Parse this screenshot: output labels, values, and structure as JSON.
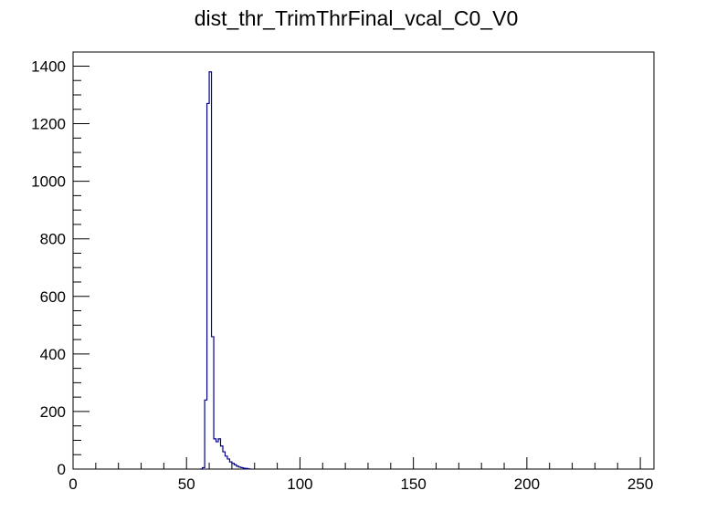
{
  "chart_data": {
    "type": "histogram",
    "title": "dist_thr_TrimThrFinal_vcal_C0_V0",
    "bins": [
      56,
      57,
      58,
      59,
      60,
      61,
      62,
      63,
      64,
      65,
      66,
      67,
      68,
      69,
      70,
      71,
      72,
      73,
      74,
      75,
      76,
      77,
      78
    ],
    "values": [
      0,
      5,
      240,
      1270,
      1380,
      460,
      105,
      95,
      105,
      80,
      60,
      45,
      35,
      25,
      20,
      15,
      10,
      7,
      5,
      3,
      2,
      1
    ],
    "color": "#00008b",
    "xlim": [
      0,
      256
    ],
    "ylim": [
      0,
      1449
    ],
    "xticks": [
      0,
      50,
      100,
      150,
      200,
      250
    ],
    "yticks": [
      0,
      200,
      400,
      600,
      800,
      1000,
      1200,
      1400
    ],
    "x_minor_ticks": [
      10,
      20,
      30,
      40,
      60,
      70,
      80,
      90,
      110,
      120,
      130,
      140,
      160,
      170,
      180,
      190,
      210,
      220,
      230,
      240
    ],
    "y_minor_ticks": [
      50,
      100,
      150,
      250,
      300,
      350,
      450,
      500,
      550,
      650,
      700,
      750,
      850,
      900,
      950,
      1050,
      1100,
      1150,
      1250,
      1300,
      1350
    ]
  }
}
